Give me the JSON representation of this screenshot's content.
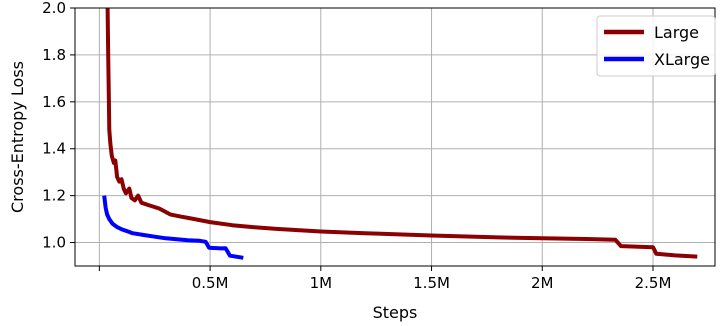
{
  "chart_data": {
    "type": "line",
    "xlabel": "Steps",
    "ylabel": "Cross-Entropy Loss",
    "xlim": [
      -110000,
      2780000
    ],
    "ylim": [
      0.9,
      2.0
    ],
    "x_ticks": [
      {
        "value": 0,
        "label": ""
      },
      {
        "value": 500000,
        "label": "0.5M"
      },
      {
        "value": 1000000,
        "label": "1M"
      },
      {
        "value": 1500000,
        "label": "1.5M"
      },
      {
        "value": 2000000,
        "label": "2M"
      },
      {
        "value": 2500000,
        "label": "2.5M"
      }
    ],
    "y_ticks": [
      {
        "value": 1.0,
        "label": "1.0"
      },
      {
        "value": 1.2,
        "label": "1.2"
      },
      {
        "value": 1.4,
        "label": "1.4"
      },
      {
        "value": 1.6,
        "label": "1.6"
      },
      {
        "value": 1.8,
        "label": "1.8"
      },
      {
        "value": 2.0,
        "label": "2.0"
      }
    ],
    "grid": true,
    "legend_position": "top-right",
    "series": [
      {
        "name": "Large",
        "color": "#8b0000",
        "points": [
          [
            37000,
            2.0
          ],
          [
            40000,
            1.8
          ],
          [
            43000,
            1.6
          ],
          [
            45000,
            1.48
          ],
          [
            50000,
            1.42
          ],
          [
            56000,
            1.37
          ],
          [
            65000,
            1.34
          ],
          [
            72000,
            1.35
          ],
          [
            80000,
            1.28
          ],
          [
            90000,
            1.26
          ],
          [
            100000,
            1.27
          ],
          [
            110000,
            1.23
          ],
          [
            120000,
            1.21
          ],
          [
            135000,
            1.23
          ],
          [
            145000,
            1.19
          ],
          [
            160000,
            1.18
          ],
          [
            175000,
            1.2
          ],
          [
            190000,
            1.17
          ],
          [
            220000,
            1.16
          ],
          [
            270000,
            1.145
          ],
          [
            320000,
            1.12
          ],
          [
            370000,
            1.11
          ],
          [
            400000,
            1.105
          ],
          [
            430000,
            1.1
          ],
          [
            500000,
            1.087
          ],
          [
            600000,
            1.074
          ],
          [
            700000,
            1.065
          ],
          [
            800000,
            1.058
          ],
          [
            1000000,
            1.047
          ],
          [
            1200000,
            1.04
          ],
          [
            1500000,
            1.03
          ],
          [
            1800000,
            1.022
          ],
          [
            2000000,
            1.018
          ],
          [
            2200000,
            1.015
          ],
          [
            2330000,
            1.012
          ],
          [
            2355000,
            0.985
          ],
          [
            2500000,
            0.98
          ],
          [
            2515000,
            0.952
          ],
          [
            2600000,
            0.945
          ],
          [
            2700000,
            0.94
          ]
        ]
      },
      {
        "name": "XLarge",
        "color": "#0000ff",
        "points": [
          [
            22000,
            1.2
          ],
          [
            28000,
            1.15
          ],
          [
            35000,
            1.12
          ],
          [
            45000,
            1.1
          ],
          [
            60000,
            1.08
          ],
          [
            80000,
            1.066
          ],
          [
            100000,
            1.057
          ],
          [
            150000,
            1.04
          ],
          [
            200000,
            1.032
          ],
          [
            250000,
            1.025
          ],
          [
            300000,
            1.018
          ],
          [
            350000,
            1.014
          ],
          [
            400000,
            1.01
          ],
          [
            450000,
            1.008
          ],
          [
            480000,
            1.003
          ],
          [
            495000,
            0.978
          ],
          [
            550000,
            0.975
          ],
          [
            570000,
            0.976
          ],
          [
            590000,
            0.944
          ],
          [
            650000,
            0.935
          ]
        ]
      }
    ]
  }
}
